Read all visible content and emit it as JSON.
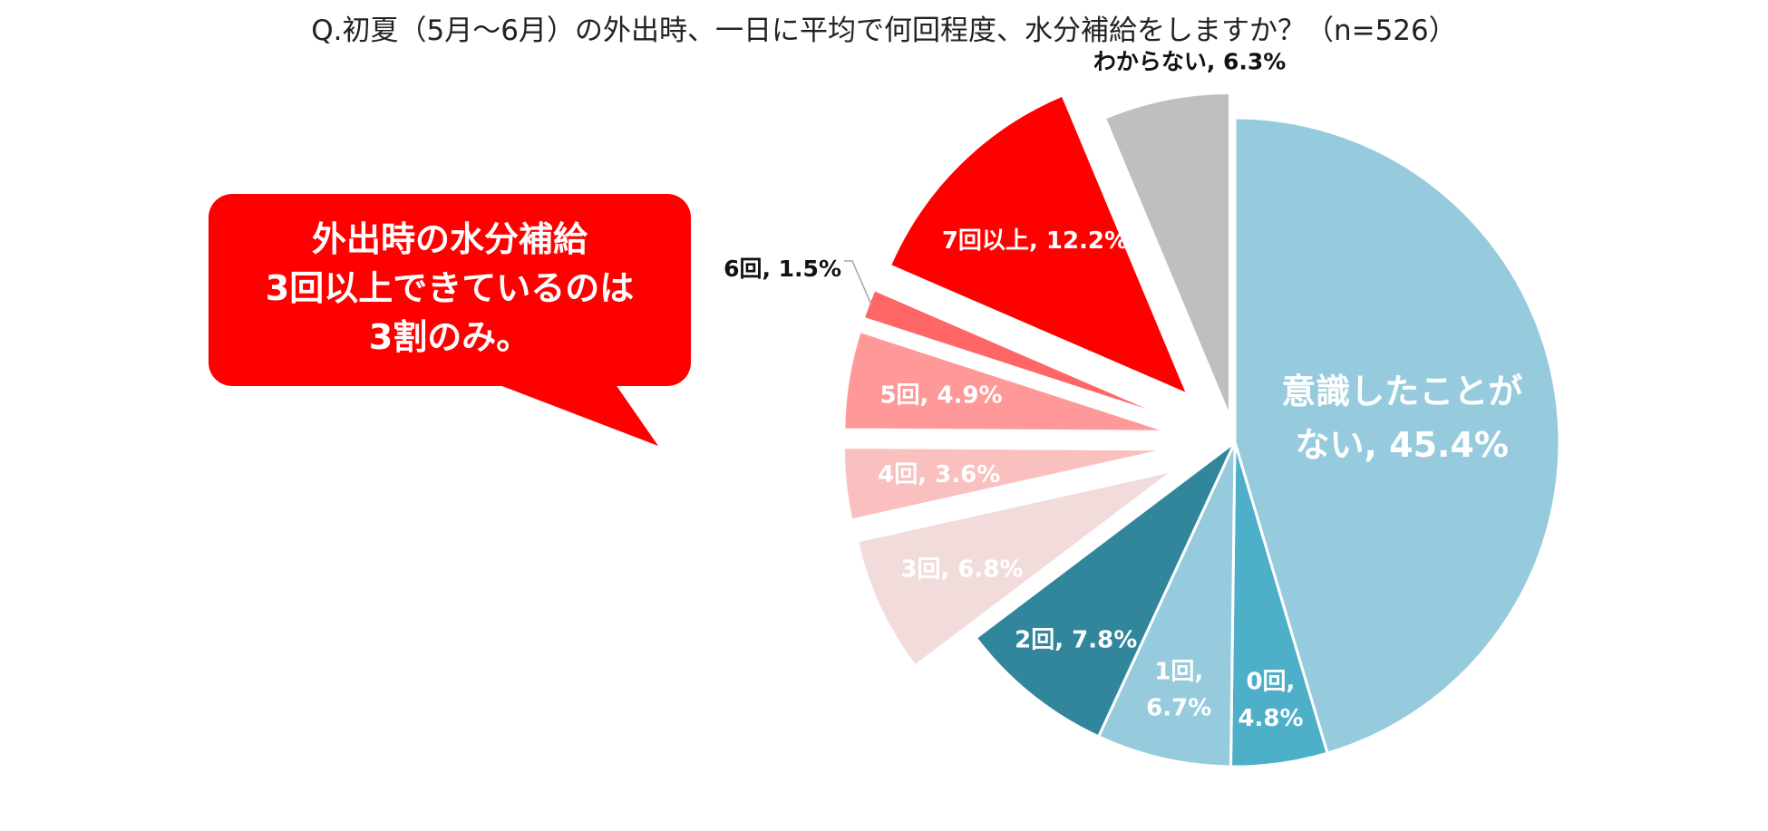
{
  "chart_data": {
    "type": "pie",
    "title": "Q.初夏（5月～6月）の外出時、一日に平均で何回程度、水分補給をしますか？（n=526）",
    "start_angle_deg": 0,
    "direction": "clockwise",
    "slices": [
      {
        "name": "意識したことがない",
        "value": 45.4,
        "label_lines": [
          "意識したことが",
          "ない, 45.4%"
        ],
        "color": "#96CBDD"
      },
      {
        "name": "0回",
        "value": 4.8,
        "label_lines": [
          "0回,",
          "4.8%"
        ],
        "color": "#4DAFC8"
      },
      {
        "name": "1回",
        "value": 6.7,
        "label_lines": [
          "1回,",
          "6.7%"
        ],
        "color": "#96CBDD"
      },
      {
        "name": "2回",
        "value": 7.8,
        "label_lines": [
          "2回, 7.8%"
        ],
        "color": "#31869B"
      },
      {
        "name": "3回",
        "value": 6.8,
        "label_lines": [
          "3回, 6.8%"
        ],
        "color": "#F2DCDB"
      },
      {
        "name": "4回",
        "value": 3.6,
        "label_lines": [
          "4回, 3.6%"
        ],
        "color": "#FABFBF"
      },
      {
        "name": "5回",
        "value": 4.9,
        "label_lines": [
          "5回, 4.9%"
        ],
        "color": "#FF9999"
      },
      {
        "name": "6回",
        "value": 1.5,
        "label_lines": [
          "6回, 1.5%"
        ],
        "color": "#FF6666"
      },
      {
        "name": "7回以上",
        "value": 12.2,
        "label_lines": [
          "7回以上, 12.2%"
        ],
        "color": "#FF0000"
      },
      {
        "name": "わからない",
        "value": 6.3,
        "label_lines": [
          "わからない, 6.3%"
        ],
        "color": "#BFBFBF"
      }
    ],
    "callout": {
      "lines": [
        "外出時の水分補給",
        "3回以上できているのは",
        "3割のみ。"
      ],
      "color": "#FF0000"
    }
  }
}
